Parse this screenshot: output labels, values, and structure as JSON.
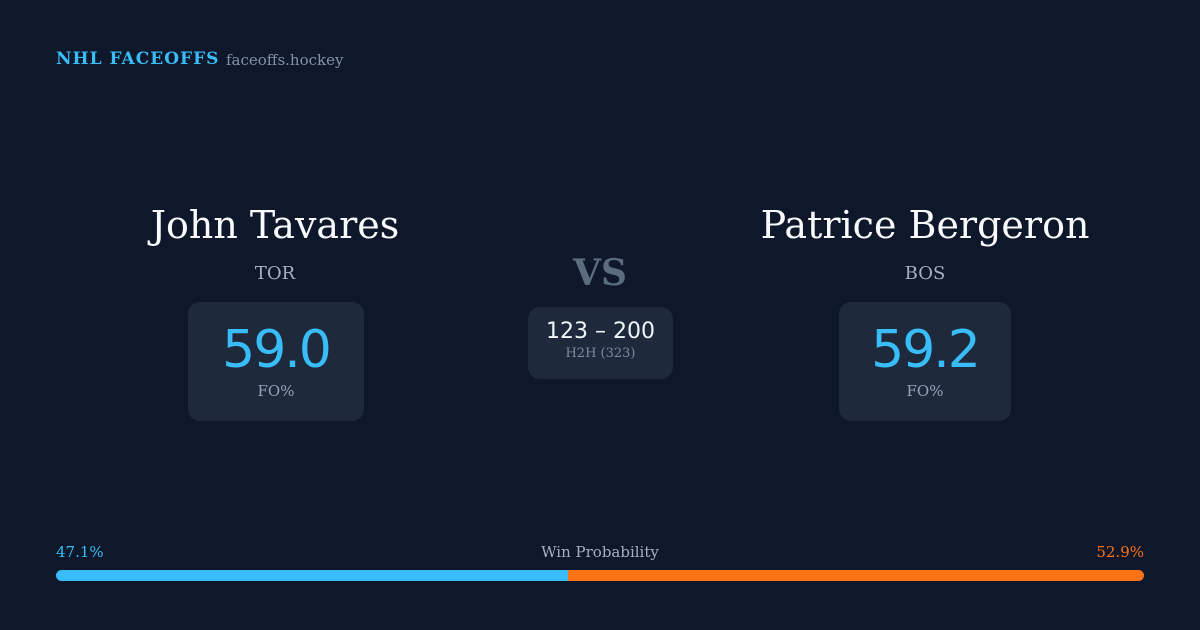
{
  "header": {
    "brand": "NHL FACEOFFS",
    "site": "faceoffs.hockey"
  },
  "players": [
    {
      "name": "John Tavares",
      "team": "TOR",
      "fo_pct": "59.0",
      "fo_label": "FO%"
    },
    {
      "name": "Patrice Bergeron",
      "team": "BOS",
      "fo_pct": "59.2",
      "fo_label": "FO%"
    }
  ],
  "versus": "VS",
  "head_to_head": {
    "score": "123 – 200",
    "label": "H2H (323)"
  },
  "win_probability": {
    "title": "Win Probability",
    "values": [
      47.1,
      52.9
    ],
    "value_labels": [
      "47.1%",
      "52.9%"
    ],
    "colors": [
      "#38bdf8",
      "#f97316"
    ]
  }
}
